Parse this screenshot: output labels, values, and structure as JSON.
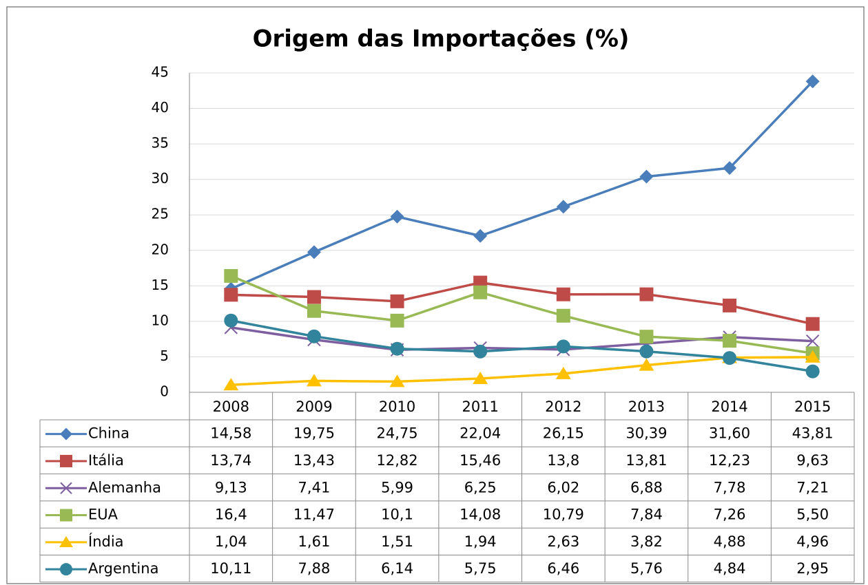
{
  "chart_data": {
    "type": "line",
    "title": "Origem das Importações (%)",
    "categories": [
      "2008",
      "2009",
      "2010",
      "2011",
      "2012",
      "2013",
      "2014",
      "2015"
    ],
    "ylim": [
      0,
      45
    ],
    "yticks": [
      0,
      5,
      10,
      15,
      20,
      25,
      30,
      35,
      40,
      45
    ],
    "grid": true,
    "series": [
      {
        "name": "China",
        "color": "#4a7ebb",
        "marker": "diamond",
        "values": [
          14.58,
          19.75,
          24.75,
          22.04,
          26.15,
          30.39,
          31.6,
          43.81
        ],
        "value_labels": [
          "14,58",
          "19,75",
          "24,75",
          "22,04",
          "26,15",
          "30,39",
          "31,60",
          "43,81"
        ]
      },
      {
        "name": "Itália",
        "color": "#be4b48",
        "marker": "square",
        "values": [
          13.74,
          13.43,
          12.82,
          15.46,
          13.8,
          13.81,
          12.23,
          9.63
        ],
        "value_labels": [
          "13,74",
          "13,43",
          "12,82",
          "15,46",
          "13,8",
          "13,81",
          "12,23",
          "9,63"
        ]
      },
      {
        "name": "Alemanha",
        "color": "#7d5fa0",
        "marker": "x",
        "values": [
          9.13,
          7.41,
          5.99,
          6.25,
          6.02,
          6.88,
          7.78,
          7.21
        ],
        "value_labels": [
          "9,13",
          "7,41",
          "5,99",
          "6,25",
          "6,02",
          "6,88",
          "7,78",
          "7,21"
        ]
      },
      {
        "name": "EUA",
        "color": "#98b954",
        "marker": "square",
        "values": [
          16.4,
          11.47,
          10.1,
          14.08,
          10.79,
          7.84,
          7.26,
          5.5
        ],
        "value_labels": [
          "16,4",
          "11,47",
          "10,1",
          "14,08",
          "10,79",
          "7,84",
          "7,26",
          "5,50"
        ]
      },
      {
        "name": "Índia",
        "color": "#ffc000",
        "marker": "triangle",
        "values": [
          1.04,
          1.61,
          1.51,
          1.94,
          2.63,
          3.82,
          4.88,
          4.96
        ],
        "value_labels": [
          "1,04",
          "1,61",
          "1,51",
          "1,94",
          "2,63",
          "3,82",
          "4,88",
          "4,96"
        ]
      },
      {
        "name": "Argentina",
        "color": "#31849b",
        "marker": "circle",
        "values": [
          10.11,
          7.88,
          6.14,
          5.75,
          6.46,
          5.76,
          4.84,
          2.95
        ],
        "value_labels": [
          "10,11",
          "7,88",
          "6,14",
          "5,75",
          "6,46",
          "5,76",
          "4,84",
          "2,95"
        ]
      }
    ]
  }
}
